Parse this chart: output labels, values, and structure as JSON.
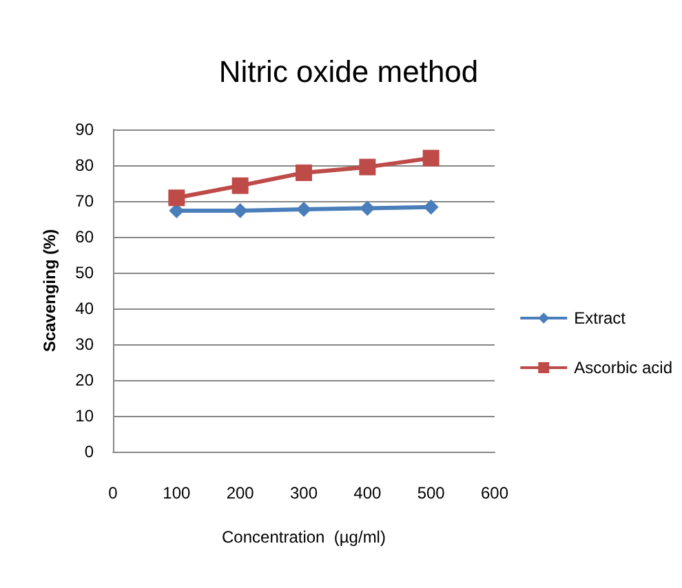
{
  "chart_data": {
    "type": "line",
    "title": "Nitric oxide method",
    "xlabel": "Concentration  (µg/ml)",
    "ylabel": "Scavenging (%)",
    "x": [
      100,
      200,
      300,
      400,
      500
    ],
    "series": [
      {
        "name": "Extract",
        "color": "#4a7ebb",
        "marker": "diamond",
        "values": [
          67.3,
          67.3,
          67.7,
          68,
          68.3
        ]
      },
      {
        "name": "Ascorbic acid",
        "color": "#be4b48",
        "marker": "square",
        "values": [
          70.9,
          74.3,
          77.9,
          79.5,
          82
        ]
      }
    ],
    "xlim": [
      0,
      600
    ],
    "xticks": [
      0,
      100,
      200,
      300,
      400,
      500,
      600
    ],
    "ylim": [
      0,
      90
    ],
    "yticks": [
      0,
      10,
      20,
      30,
      40,
      50,
      60,
      70,
      80,
      90
    ],
    "grid": "y",
    "legend": "right",
    "line_style": "solid"
  }
}
